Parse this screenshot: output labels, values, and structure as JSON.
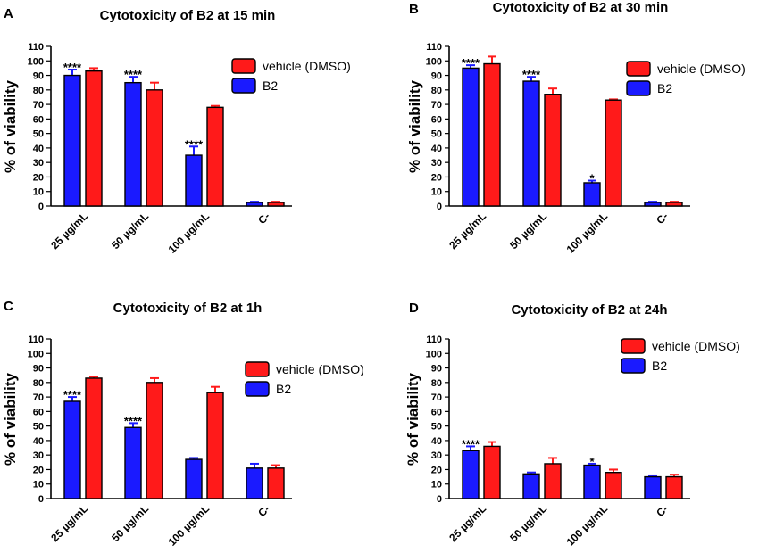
{
  "figure": {
    "series_colors": {
      "B2": "#1a1aff",
      "vehicle (DMSO)": "#ff1a1a"
    },
    "border_color": "#000000"
  },
  "chart_data": [
    {
      "panel": "A",
      "type": "bar",
      "title": "Cytotoxicity of B2 at 15 min",
      "ylabel": "% of viability",
      "xlabel": "",
      "ylim": [
        0,
        110
      ],
      "yticks": [
        0,
        10,
        20,
        30,
        40,
        50,
        60,
        70,
        80,
        90,
        100,
        110
      ],
      "legend_position": "top-right",
      "categories": [
        "25 µg/mL",
        "50 µg/mL",
        "100 µg/mL",
        "C-"
      ],
      "series": [
        {
          "name": "B2",
          "color": "#1a1aff",
          "values": [
            90,
            85,
            35,
            2.5
          ],
          "errors": [
            4,
            4,
            6,
            0.5
          ]
        },
        {
          "name": "vehicle (DMSO)",
          "color": "#ff1a1a",
          "values": [
            93,
            80,
            68,
            2.5
          ],
          "errors": [
            2,
            5,
            1,
            0.5
          ]
        }
      ],
      "annotations": [
        {
          "category": 0,
          "series": "B2",
          "text": "****"
        },
        {
          "category": 1,
          "series": "B2",
          "text": "****"
        },
        {
          "category": 2,
          "series": "B2",
          "text": "****"
        }
      ]
    },
    {
      "panel": "B",
      "type": "bar",
      "title": "Cytotoxicity of B2 at 30 min",
      "ylabel": "% of viability",
      "xlabel": "",
      "ylim": [
        0,
        110
      ],
      "yticks": [
        0,
        10,
        20,
        30,
        40,
        50,
        60,
        70,
        80,
        90,
        100,
        110
      ],
      "legend_position": "top-right",
      "categories": [
        "25 µg/mL",
        "50 µg/mL",
        "100 µg/mL",
        "C-"
      ],
      "series": [
        {
          "name": "B2",
          "color": "#1a1aff",
          "values": [
            95,
            86,
            16,
            2.5
          ],
          "errors": [
            2,
            3,
            1.5,
            0.5
          ]
        },
        {
          "name": "vehicle (DMSO)",
          "color": "#ff1a1a",
          "values": [
            98,
            77,
            73,
            2.5
          ],
          "errors": [
            5,
            4,
            0.5,
            0.5
          ]
        }
      ],
      "annotations": [
        {
          "category": 0,
          "series": "B2",
          "text": "****"
        },
        {
          "category": 1,
          "series": "B2",
          "text": "****"
        },
        {
          "category": 2,
          "series": "B2",
          "text": "*"
        }
      ]
    },
    {
      "panel": "C",
      "type": "bar",
      "title": "Cytotoxicity of B2 at 1h",
      "ylabel": "% of viability",
      "xlabel": "",
      "ylim": [
        0,
        110
      ],
      "yticks": [
        0,
        10,
        20,
        30,
        40,
        50,
        60,
        70,
        80,
        90,
        100,
        110
      ],
      "legend_position": "top-right",
      "categories": [
        "25 µg/mL",
        "50 µg/mL",
        "100 µg/mL",
        "C-"
      ],
      "series": [
        {
          "name": "B2",
          "color": "#1a1aff",
          "values": [
            67,
            49,
            27,
            21
          ],
          "errors": [
            3,
            3,
            1,
            3
          ]
        },
        {
          "name": "vehicle (DMSO)",
          "color": "#ff1a1a",
          "values": [
            83,
            80,
            73,
            21
          ],
          "errors": [
            1,
            3,
            4,
            2
          ]
        }
      ],
      "annotations": [
        {
          "category": 0,
          "series": "B2",
          "text": "****"
        },
        {
          "category": 1,
          "series": "B2",
          "text": "****"
        }
      ]
    },
    {
      "panel": "D",
      "type": "bar",
      "title": "Cytotoxicity of B2 at 24h",
      "ylabel": "% of viability",
      "xlabel": "",
      "ylim": [
        0,
        110
      ],
      "yticks": [
        0,
        10,
        20,
        30,
        40,
        50,
        60,
        70,
        80,
        90,
        100,
        110
      ],
      "legend_position": "top-right",
      "categories": [
        "25 µg/mL",
        "50 µg/mL",
        "100 µg/mL",
        "C-"
      ],
      "series": [
        {
          "name": "B2",
          "color": "#1a1aff",
          "values": [
            33,
            17,
            23,
            15
          ],
          "errors": [
            3,
            1,
            1,
            1
          ]
        },
        {
          "name": "vehicle (DMSO)",
          "color": "#ff1a1a",
          "values": [
            36,
            24,
            18,
            15
          ],
          "errors": [
            3,
            4,
            2,
            1.5
          ]
        }
      ],
      "annotations": [
        {
          "category": 0,
          "series": "B2",
          "text": "****"
        },
        {
          "category": 2,
          "series": "B2",
          "text": "*"
        }
      ]
    }
  ]
}
